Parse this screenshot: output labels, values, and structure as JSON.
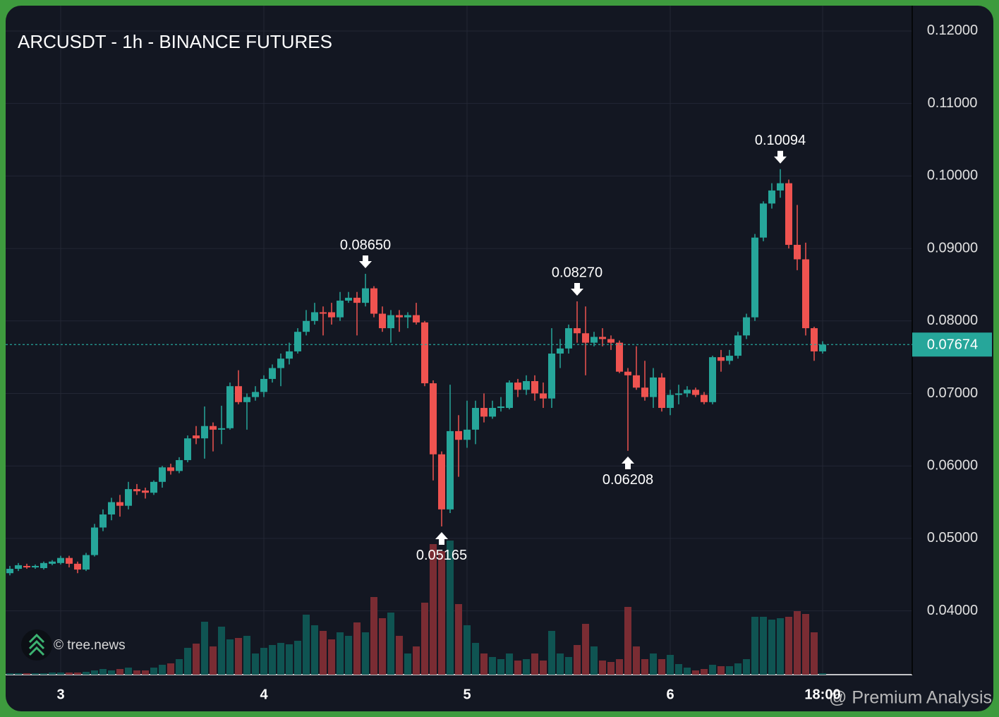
{
  "chart_data": {
    "type": "candlestick",
    "title": "ARCUSDT - 1h - BINANCE FUTURES",
    "categories": [
      null,
      null,
      null,
      null,
      null,
      null,
      "3",
      null,
      null,
      null,
      null,
      null,
      null,
      null,
      null,
      null,
      null,
      null,
      null,
      null,
      null,
      null,
      null,
      null,
      null,
      null,
      null,
      null,
      null,
      null,
      "4",
      null,
      null,
      null,
      null,
      null,
      null,
      null,
      null,
      null,
      null,
      null,
      null,
      null,
      null,
      null,
      null,
      null,
      null,
      null,
      null,
      null,
      null,
      null,
      "5",
      null,
      null,
      null,
      null,
      null,
      null,
      null,
      null,
      null,
      null,
      null,
      null,
      null,
      null,
      null,
      null,
      null,
      null,
      null,
      null,
      null,
      null,
      null,
      "6",
      null,
      null,
      null,
      null,
      null,
      null,
      null,
      null,
      null,
      null,
      null,
      null,
      null,
      null,
      null,
      null,
      null,
      "18:00"
    ],
    "open": [
      0.0452,
      0.0458,
      0.0462,
      0.046,
      0.0459,
      0.0465,
      0.0466,
      0.0473,
      0.0465,
      0.0457,
      0.0477,
      0.0515,
      0.0533,
      0.055,
      0.0545,
      0.0568,
      0.0566,
      0.0563,
      0.0578,
      0.0598,
      0.0593,
      0.0608,
      0.0642,
      0.0638,
      0.0655,
      0.065,
      0.0652,
      0.071,
      0.0688,
      0.0695,
      0.0702,
      0.072,
      0.0735,
      0.0748,
      0.0758,
      0.0785,
      0.08,
      0.0812,
      0.0812,
      0.0805,
      0.0828,
      0.0832,
      0.0825,
      0.0845,
      0.081,
      0.079,
      0.0808,
      0.0805,
      0.0808,
      0.0798,
      0.0714,
      0.0616,
      0.054,
      0.0648,
      0.0636,
      0.065,
      0.068,
      0.0668,
      0.068,
      0.068,
      0.0715,
      0.0705,
      0.0717,
      0.07,
      0.0693,
      0.0755,
      0.0762,
      0.079,
      0.0783,
      0.077,
      0.0778,
      0.0775,
      0.077,
      0.073,
      0.0725,
      0.0708,
      0.0695,
      0.0722,
      0.068,
      0.0698,
      0.07,
      0.0705,
      0.0698,
      0.0688,
      0.075,
      0.0745,
      0.0752,
      0.078,
      0.0805,
      0.0915,
      0.0962,
      0.098,
      0.099,
      0.0905,
      0.0885,
      0.079,
      0.0758
    ],
    "high": [
      0.0462,
      0.0466,
      0.0465,
      0.0464,
      0.0468,
      0.047,
      0.0476,
      0.0476,
      0.0468,
      0.048,
      0.052,
      0.054,
      0.0556,
      0.056,
      0.0578,
      0.0575,
      0.057,
      0.058,
      0.06,
      0.0603,
      0.0612,
      0.0642,
      0.0655,
      0.0682,
      0.066,
      0.0683,
      0.0715,
      0.0732,
      0.07,
      0.071,
      0.0725,
      0.074,
      0.0755,
      0.077,
      0.079,
      0.0815,
      0.0825,
      0.082,
      0.0825,
      0.084,
      0.084,
      0.084,
      0.0865,
      0.0848,
      0.082,
      0.0815,
      0.0815,
      0.0812,
      0.0825,
      0.08,
      0.0718,
      0.062,
      0.0712,
      0.067,
      0.069,
      0.069,
      0.07,
      0.069,
      0.0695,
      0.0718,
      0.072,
      0.0725,
      0.0725,
      0.0715,
      0.079,
      0.0775,
      0.0795,
      0.0827,
      0.082,
      0.0785,
      0.079,
      0.078,
      0.0773,
      0.0735,
      0.0765,
      0.0745,
      0.0735,
      0.0728,
      0.0705,
      0.0712,
      0.071,
      0.0708,
      0.0702,
      0.0752,
      0.076,
      0.076,
      0.0785,
      0.081,
      0.092,
      0.0965,
      0.099,
      0.10094,
      0.0995,
      0.096,
      0.0908,
      0.0792,
      0.0772
    ],
    "low": [
      0.0449,
      0.0455,
      0.0458,
      0.0458,
      0.0457,
      0.0463,
      0.0464,
      0.046,
      0.0452,
      0.0455,
      0.0475,
      0.051,
      0.0525,
      0.053,
      0.054,
      0.056,
      0.0555,
      0.056,
      0.057,
      0.0588,
      0.059,
      0.0605,
      0.063,
      0.061,
      0.062,
      0.063,
      0.065,
      0.0685,
      0.065,
      0.069,
      0.0695,
      0.0715,
      0.071,
      0.074,
      0.0755,
      0.078,
      0.0795,
      0.078,
      0.0795,
      0.08,
      0.0825,
      0.078,
      0.082,
      0.0805,
      0.0785,
      0.077,
      0.0785,
      0.079,
      0.0795,
      0.071,
      0.058,
      0.05165,
      0.0535,
      0.0585,
      0.0625,
      0.063,
      0.066,
      0.0665,
      0.0675,
      0.0678,
      0.0695,
      0.0698,
      0.069,
      0.068,
      0.068,
      0.0735,
      0.0755,
      0.077,
      0.0725,
      0.0765,
      0.0765,
      0.076,
      0.0728,
      0.06208,
      0.0705,
      0.069,
      0.068,
      0.0675,
      0.067,
      0.0685,
      0.0695,
      0.0695,
      0.0685,
      0.0685,
      0.073,
      0.074,
      0.0748,
      0.0775,
      0.08,
      0.091,
      0.0955,
      0.097,
      0.09,
      0.087,
      0.078,
      0.0745,
      0.0755
    ],
    "close": [
      0.0458,
      0.0463,
      0.046,
      0.0462,
      0.0466,
      0.0468,
      0.0473,
      0.0465,
      0.0457,
      0.0477,
      0.0515,
      0.0533,
      0.055,
      0.0545,
      0.0568,
      0.0565,
      0.0563,
      0.0578,
      0.0598,
      0.0593,
      0.0608,
      0.0638,
      0.0638,
      0.0655,
      0.065,
      0.0652,
      0.071,
      0.0688,
      0.0695,
      0.0702,
      0.072,
      0.0735,
      0.0748,
      0.0758,
      0.0785,
      0.08,
      0.0812,
      0.081,
      0.0805,
      0.0828,
      0.0832,
      0.0825,
      0.0845,
      0.081,
      0.079,
      0.0808,
      0.0805,
      0.0808,
      0.0798,
      0.0714,
      0.0616,
      0.054,
      0.0648,
      0.0636,
      0.065,
      0.068,
      0.0668,
      0.068,
      0.0682,
      0.0715,
      0.0705,
      0.0717,
      0.07,
      0.0693,
      0.0755,
      0.0762,
      0.079,
      0.0783,
      0.077,
      0.0778,
      0.0775,
      0.077,
      0.073,
      0.0725,
      0.0708,
      0.0695,
      0.0722,
      0.068,
      0.0698,
      0.07,
      0.0705,
      0.0698,
      0.0688,
      0.075,
      0.0745,
      0.0752,
      0.078,
      0.0805,
      0.0915,
      0.0962,
      0.098,
      0.099,
      0.0905,
      0.0885,
      0.079,
      0.0758,
      0.07674
    ],
    "volume": [
      2,
      2,
      2,
      2,
      2,
      3,
      3,
      3,
      3,
      4,
      6,
      8,
      6,
      8,
      10,
      6,
      6,
      10,
      14,
      16,
      22,
      38,
      44,
      75,
      40,
      68,
      50,
      52,
      55,
      30,
      38,
      42,
      45,
      43,
      48,
      85,
      70,
      62,
      50,
      60,
      55,
      74,
      60,
      110,
      80,
      88,
      55,
      30,
      40,
      102,
      185,
      175,
      190,
      100,
      70,
      45,
      30,
      25,
      22,
      30,
      20,
      22,
      30,
      20,
      62,
      30,
      25,
      42,
      72,
      40,
      20,
      18,
      22,
      96,
      40,
      22,
      30,
      22,
      28,
      15,
      10,
      6,
      8,
      14,
      12,
      12,
      16,
      22,
      82,
      82,
      78,
      80,
      82,
      90,
      86,
      60,
      2
    ],
    "up_color": "#26a69a",
    "down_color": "#ef5350",
    "ylim": [
      0.0312,
      0.1235
    ],
    "yticks": [
      {
        "value": 0.12,
        "label": "0.12000"
      },
      {
        "value": 0.11,
        "label": "0.11000"
      },
      {
        "value": 0.1,
        "label": "0.10000"
      },
      {
        "value": 0.09,
        "label": "0.09000"
      },
      {
        "value": 0.08,
        "label": "0.08000"
      },
      {
        "value": 0.07,
        "label": "0.07000"
      },
      {
        "value": 0.06,
        "label": "0.06000"
      },
      {
        "value": 0.05,
        "label": "0.05000"
      },
      {
        "value": 0.04,
        "label": "0.04000"
      }
    ],
    "last_price": 0.07674,
    "annotations": [
      {
        "value": 0.0865,
        "label": "0.08650"
      },
      {
        "value": 0.05165,
        "label": "0.05165"
      },
      {
        "value": 0.0827,
        "label": "0.08270"
      },
      {
        "value": 0.06208,
        "label": "0.06208"
      },
      {
        "value": 0.10094,
        "label": "0.10094"
      }
    ],
    "grid": true
  },
  "credit": "© tree.news",
  "watermark": "@ Premium Analysis"
}
